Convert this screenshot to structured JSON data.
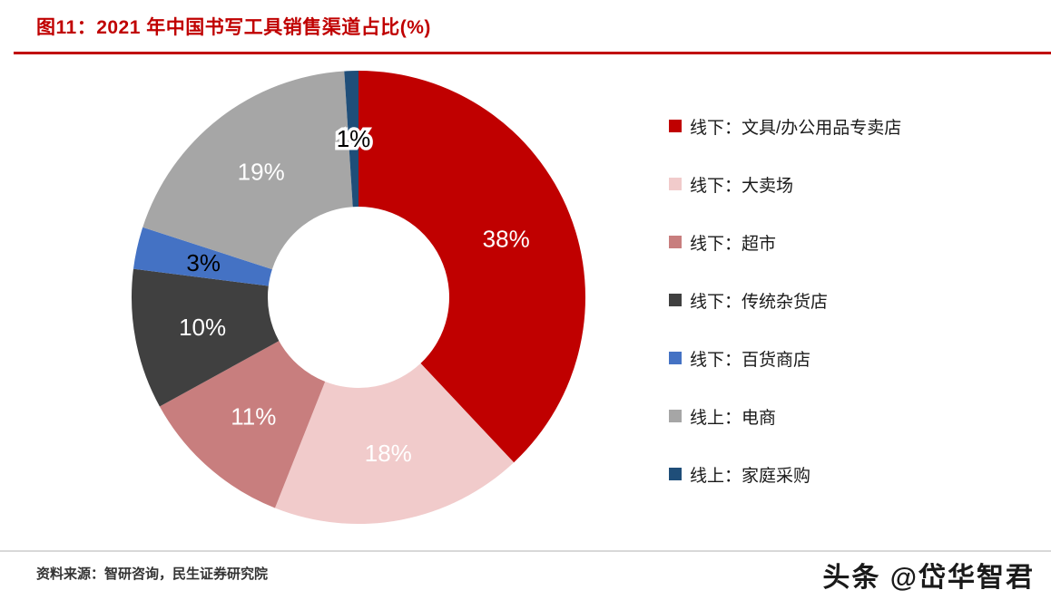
{
  "title": "图11：2021 年中国书写工具销售渠道占比(%)",
  "source": "资料来源：智研咨询，民生证券研究院",
  "watermark": "头条 @岱华智君",
  "accent_color": "#C00000",
  "chart_data": {
    "type": "pie",
    "subtype": "donut",
    "title": "2021 年中国书写工具销售渠道占比(%)",
    "unit": "%",
    "start_angle_deg": 0,
    "direction": "clockwise",
    "legend_position": "right",
    "inner_radius_ratio": 0.4,
    "series": [
      {
        "label": "线下：文具/办公用品专卖店",
        "value": 38,
        "color": "#C00000",
        "label_color": "#FFFFFF"
      },
      {
        "label": "线下：大卖场",
        "value": 18,
        "color": "#F1CBCB",
        "label_color": "#FFFFFF"
      },
      {
        "label": "线下：超市",
        "value": 11,
        "color": "#C87E7E",
        "label_color": "#FFFFFF"
      },
      {
        "label": "线下：传统杂货店",
        "value": 10,
        "color": "#404040",
        "label_color": "#FFFFFF"
      },
      {
        "label": "线下：百货商店",
        "value": 3,
        "color": "#4472C4",
        "label_color": "#000000"
      },
      {
        "label": "线上：电商",
        "value": 19,
        "color": "#A6A6A6",
        "label_color": "#FFFFFF"
      },
      {
        "label": "线上：家庭采购",
        "value": 1,
        "color": "#1F4E79",
        "label_color": "#000000",
        "label_halo": true
      }
    ]
  }
}
